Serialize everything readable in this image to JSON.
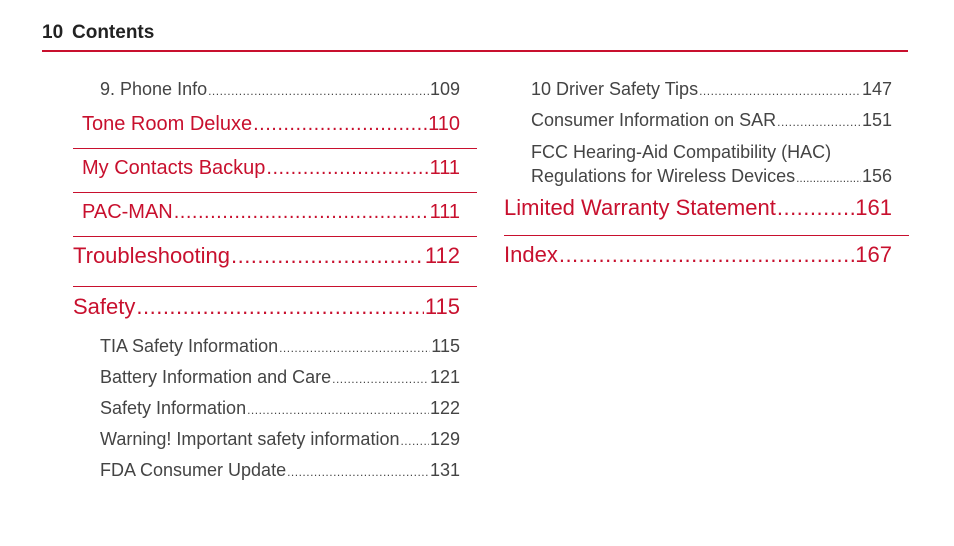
{
  "header": {
    "page_number": "10",
    "title": "Contents"
  },
  "left": {
    "phone_info": {
      "title": "9. Phone Info",
      "page": "109"
    },
    "tone_room": {
      "title": "Tone Room Deluxe",
      "page": "110"
    },
    "my_contacts": {
      "title": "My Contacts Backup ",
      "page": "111"
    },
    "pac_man": {
      "title": "PAC-MAN",
      "page": "111"
    },
    "troubleshooting": {
      "title": "Troubleshooting ",
      "page": "112"
    },
    "safety": {
      "title": "Safety",
      "page": "115"
    },
    "safety_items": [
      {
        "title": "TIA Safety Information",
        "page": "115"
      },
      {
        "title": "Battery Information and Care",
        "page": "121"
      },
      {
        "title": "Safety Information",
        "page": "122"
      },
      {
        "title": "Warning! Important safety information ",
        "page": "129"
      },
      {
        "title": "FDA Consumer Update",
        "page": "131"
      }
    ]
  },
  "right": {
    "driver_tips": {
      "title": "10 Driver Safety Tips",
      "page": "147"
    },
    "sar": {
      "title": "Consumer Information on SAR",
      "page": "151"
    },
    "fcc": {
      "line1": "FCC Hearing-Aid Compatibility (HAC)",
      "line2": "Regulations for Wireless Devices ",
      "page": "156"
    },
    "warranty": {
      "title": "Limited Warranty Statement ",
      "page": "161"
    },
    "index": {
      "title": "Index ",
      "page": "167"
    }
  },
  "colors": {
    "accent": "#c8102e",
    "text": "#444444"
  }
}
